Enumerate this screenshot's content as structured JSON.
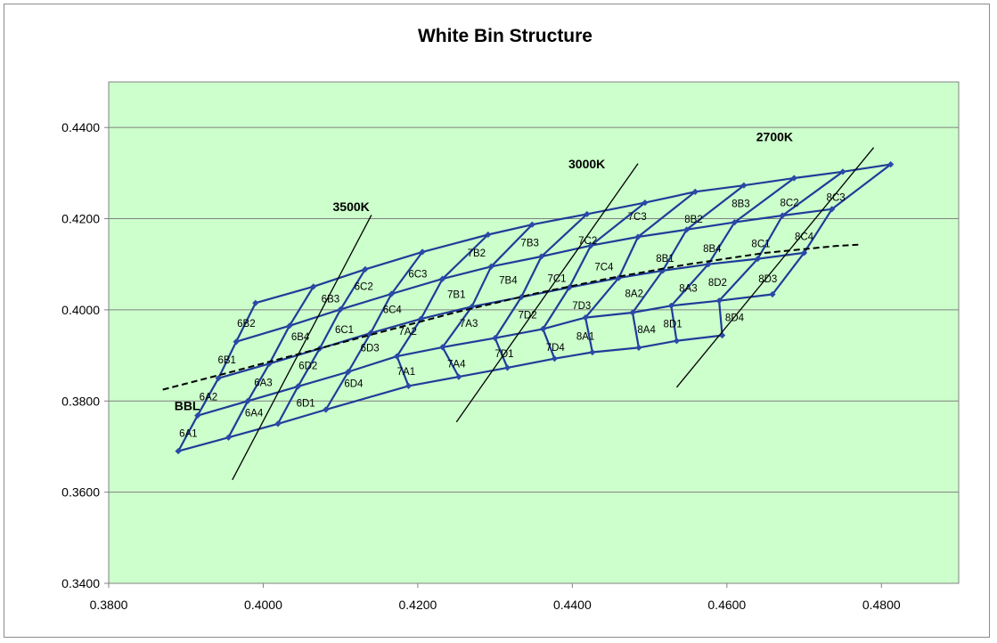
{
  "chart_data": {
    "type": "line",
    "title": "White Bin Structure",
    "xlabel": "",
    "ylabel": "",
    "xlim": [
      0.38,
      0.49
    ],
    "ylim": [
      0.34,
      0.45
    ],
    "x_ticks": [
      "0.3800",
      "0.4000",
      "0.4200",
      "0.4400",
      "0.4600",
      "0.4800"
    ],
    "y_ticks": [
      "0.3400",
      "0.3600",
      "0.3800",
      "0.4000",
      "0.4200",
      "0.4400"
    ],
    "grid": "horizontal",
    "plot_background": "#ccffcc",
    "grid_color": "#808080",
    "series_color": "#1f3c99",
    "marker_color": "#2a4aa8",
    "rows": [
      [
        [
          0.389,
          0.369
        ],
        [
          0.3955,
          0.372
        ],
        [
          0.4019,
          0.375
        ],
        [
          0.4081,
          0.3781
        ],
        [
          0.4188,
          0.3833
        ],
        [
          0.4253,
          0.3853
        ],
        [
          0.4316,
          0.3873
        ],
        [
          0.4377,
          0.3893
        ],
        [
          0.4426,
          0.3907
        ],
        [
          0.4486,
          0.3917
        ],
        [
          0.4535,
          0.3932
        ],
        [
          0.4594,
          0.3944
        ]
      ],
      [
        [
          0.3915,
          0.3768
        ],
        [
          0.398,
          0.38
        ],
        [
          0.4045,
          0.3832
        ],
        [
          0.411,
          0.3864
        ],
        [
          0.4173,
          0.3898
        ],
        [
          0.4232,
          0.3918
        ],
        [
          0.43,
          0.3938
        ],
        [
          0.4362,
          0.3958
        ],
        [
          0.4417,
          0.3983
        ],
        [
          0.4478,
          0.3994
        ],
        [
          0.4528,
          0.4009
        ],
        [
          0.459,
          0.402
        ],
        [
          0.4659,
          0.4034
        ]
      ],
      [
        [
          0.3942,
          0.385
        ],
        [
          0.4008,
          0.3882
        ],
        [
          0.4073,
          0.3915
        ],
        [
          0.4139,
          0.3949
        ],
        [
          0.4204,
          0.398
        ],
        [
          0.427,
          0.4007
        ],
        [
          0.4334,
          0.4028
        ],
        [
          0.4396,
          0.4049
        ],
        [
          0.446,
          0.407
        ],
        [
          0.4517,
          0.4086
        ],
        [
          0.4576,
          0.41
        ],
        [
          0.464,
          0.4112
        ],
        [
          0.47,
          0.4125
        ]
      ],
      [
        [
          0.3965,
          0.393
        ],
        [
          0.4034,
          0.3965
        ],
        [
          0.41,
          0.4001
        ],
        [
          0.4166,
          0.4035
        ],
        [
          0.4232,
          0.4068
        ],
        [
          0.4295,
          0.4095
        ],
        [
          0.436,
          0.4117
        ],
        [
          0.4424,
          0.4141
        ],
        [
          0.4485,
          0.416
        ],
        [
          0.4548,
          0.4176
        ],
        [
          0.461,
          0.4192
        ],
        [
          0.4672,
          0.4207
        ],
        [
          0.4736,
          0.4221
        ]
      ],
      [
        [
          0.399,
          0.4015
        ],
        [
          0.4065,
          0.4051
        ],
        [
          0.4132,
          0.4089
        ],
        [
          0.4206,
          0.4127
        ],
        [
          0.4291,
          0.4165
        ],
        [
          0.4348,
          0.4187
        ],
        [
          0.4419,
          0.421
        ],
        [
          0.4494,
          0.4235
        ],
        [
          0.4559,
          0.4259
        ],
        [
          0.4622,
          0.4273
        ],
        [
          0.4687,
          0.4289
        ],
        [
          0.475,
          0.4303
        ],
        [
          0.4812,
          0.4319
        ]
      ]
    ],
    "bin_labels": [
      {
        "t": "6A1",
        "x": 0.3903,
        "y": 0.3729
      },
      {
        "t": "6A2",
        "x": 0.3929,
        "y": 0.3809
      },
      {
        "t": "6A3",
        "x": 0.4,
        "y": 0.3841
      },
      {
        "t": "6A4",
        "x": 0.3988,
        "y": 0.3774
      },
      {
        "t": "6B1",
        "x": 0.3953,
        "y": 0.389
      },
      {
        "t": "6B2",
        "x": 0.3978,
        "y": 0.3971
      },
      {
        "t": "6B3",
        "x": 0.4087,
        "y": 0.4024
      },
      {
        "t": "6B4",
        "x": 0.4048,
        "y": 0.3941
      },
      {
        "t": "6C1",
        "x": 0.4105,
        "y": 0.3957
      },
      {
        "t": "6C2",
        "x": 0.413,
        "y": 0.4052
      },
      {
        "t": "6C3",
        "x": 0.42,
        "y": 0.4079
      },
      {
        "t": "6C4",
        "x": 0.4167,
        "y": 0.4001
      },
      {
        "t": "6D1",
        "x": 0.4055,
        "y": 0.3796
      },
      {
        "t": "6D2",
        "x": 0.4058,
        "y": 0.3878
      },
      {
        "t": "6D3",
        "x": 0.4138,
        "y": 0.3917
      },
      {
        "t": "6D4",
        "x": 0.4117,
        "y": 0.3839
      },
      {
        "t": "7A1",
        "x": 0.4185,
        "y": 0.3865
      },
      {
        "t": "7A2",
        "x": 0.4187,
        "y": 0.3953
      },
      {
        "t": "7A3",
        "x": 0.4266,
        "y": 0.3971
      },
      {
        "t": "7A4",
        "x": 0.425,
        "y": 0.3882
      },
      {
        "t": "7B1",
        "x": 0.425,
        "y": 0.4034
      },
      {
        "t": "7B2",
        "x": 0.4276,
        "y": 0.4125
      },
      {
        "t": "7B3",
        "x": 0.4345,
        "y": 0.4147
      },
      {
        "t": "7B4",
        "x": 0.4317,
        "y": 0.4065
      },
      {
        "t": "7C1",
        "x": 0.438,
        "y": 0.4069
      },
      {
        "t": "7C2",
        "x": 0.442,
        "y": 0.4152
      },
      {
        "t": "7C3",
        "x": 0.4484,
        "y": 0.4205
      },
      {
        "t": "7C4",
        "x": 0.4441,
        "y": 0.4095
      },
      {
        "t": "7D1",
        "x": 0.4312,
        "y": 0.3904
      },
      {
        "t": "7D2",
        "x": 0.4342,
        "y": 0.3989
      },
      {
        "t": "7D3",
        "x": 0.4412,
        "y": 0.401
      },
      {
        "t": "7D4",
        "x": 0.4378,
        "y": 0.3918
      },
      {
        "t": "8A1",
        "x": 0.4417,
        "y": 0.3942
      },
      {
        "t": "8A2",
        "x": 0.448,
        "y": 0.4036
      },
      {
        "t": "8A3",
        "x": 0.455,
        "y": 0.4048
      },
      {
        "t": "8A4",
        "x": 0.4496,
        "y": 0.3957
      },
      {
        "t": "8B1",
        "x": 0.452,
        "y": 0.4113
      },
      {
        "t": "8B2",
        "x": 0.4557,
        "y": 0.4199
      },
      {
        "t": "8B3",
        "x": 0.4618,
        "y": 0.4233
      },
      {
        "t": "8B4",
        "x": 0.4581,
        "y": 0.4135
      },
      {
        "t": "8C1",
        "x": 0.4644,
        "y": 0.4145
      },
      {
        "t": "8C2",
        "x": 0.4681,
        "y": 0.4235
      },
      {
        "t": "8C3",
        "x": 0.4741,
        "y": 0.4247
      },
      {
        "t": "8C4",
        "x": 0.47,
        "y": 0.4161
      },
      {
        "t": "8D1",
        "x": 0.453,
        "y": 0.397
      },
      {
        "t": "8D2",
        "x": 0.4588,
        "y": 0.406
      },
      {
        "t": "8D3",
        "x": 0.4653,
        "y": 0.4068
      },
      {
        "t": "8D4",
        "x": 0.461,
        "y": 0.3983
      }
    ],
    "cct_lines": [
      {
        "label": "3500K",
        "points": [
          [
            0.396,
            0.3627
          ],
          [
            0.414,
            0.4208
          ]
        ],
        "label_at": [
          0.409,
          0.4217
        ]
      },
      {
        "label": "3000K",
        "points": [
          [
            0.425,
            0.3754
          ],
          [
            0.4485,
            0.4321
          ]
        ],
        "label_at": [
          0.4395,
          0.431
        ]
      },
      {
        "label": "2700K",
        "points": [
          [
            0.4535,
            0.383
          ],
          [
            0.479,
            0.4356
          ]
        ],
        "label_at": [
          0.4638,
          0.437
        ]
      }
    ],
    "bbl": {
      "label": "BBL",
      "points": [
        [
          0.387,
          0.3825
        ],
        [
          0.395,
          0.386
        ],
        [
          0.405,
          0.3905
        ],
        [
          0.415,
          0.395
        ],
        [
          0.425,
          0.3995
        ],
        [
          0.435,
          0.4035
        ],
        [
          0.445,
          0.407
        ],
        [
          0.455,
          0.41
        ],
        [
          0.465,
          0.4125
        ],
        [
          0.474,
          0.414
        ],
        [
          0.477,
          0.4143
        ]
      ],
      "label_at": [
        0.3885,
        0.378
      ]
    }
  }
}
